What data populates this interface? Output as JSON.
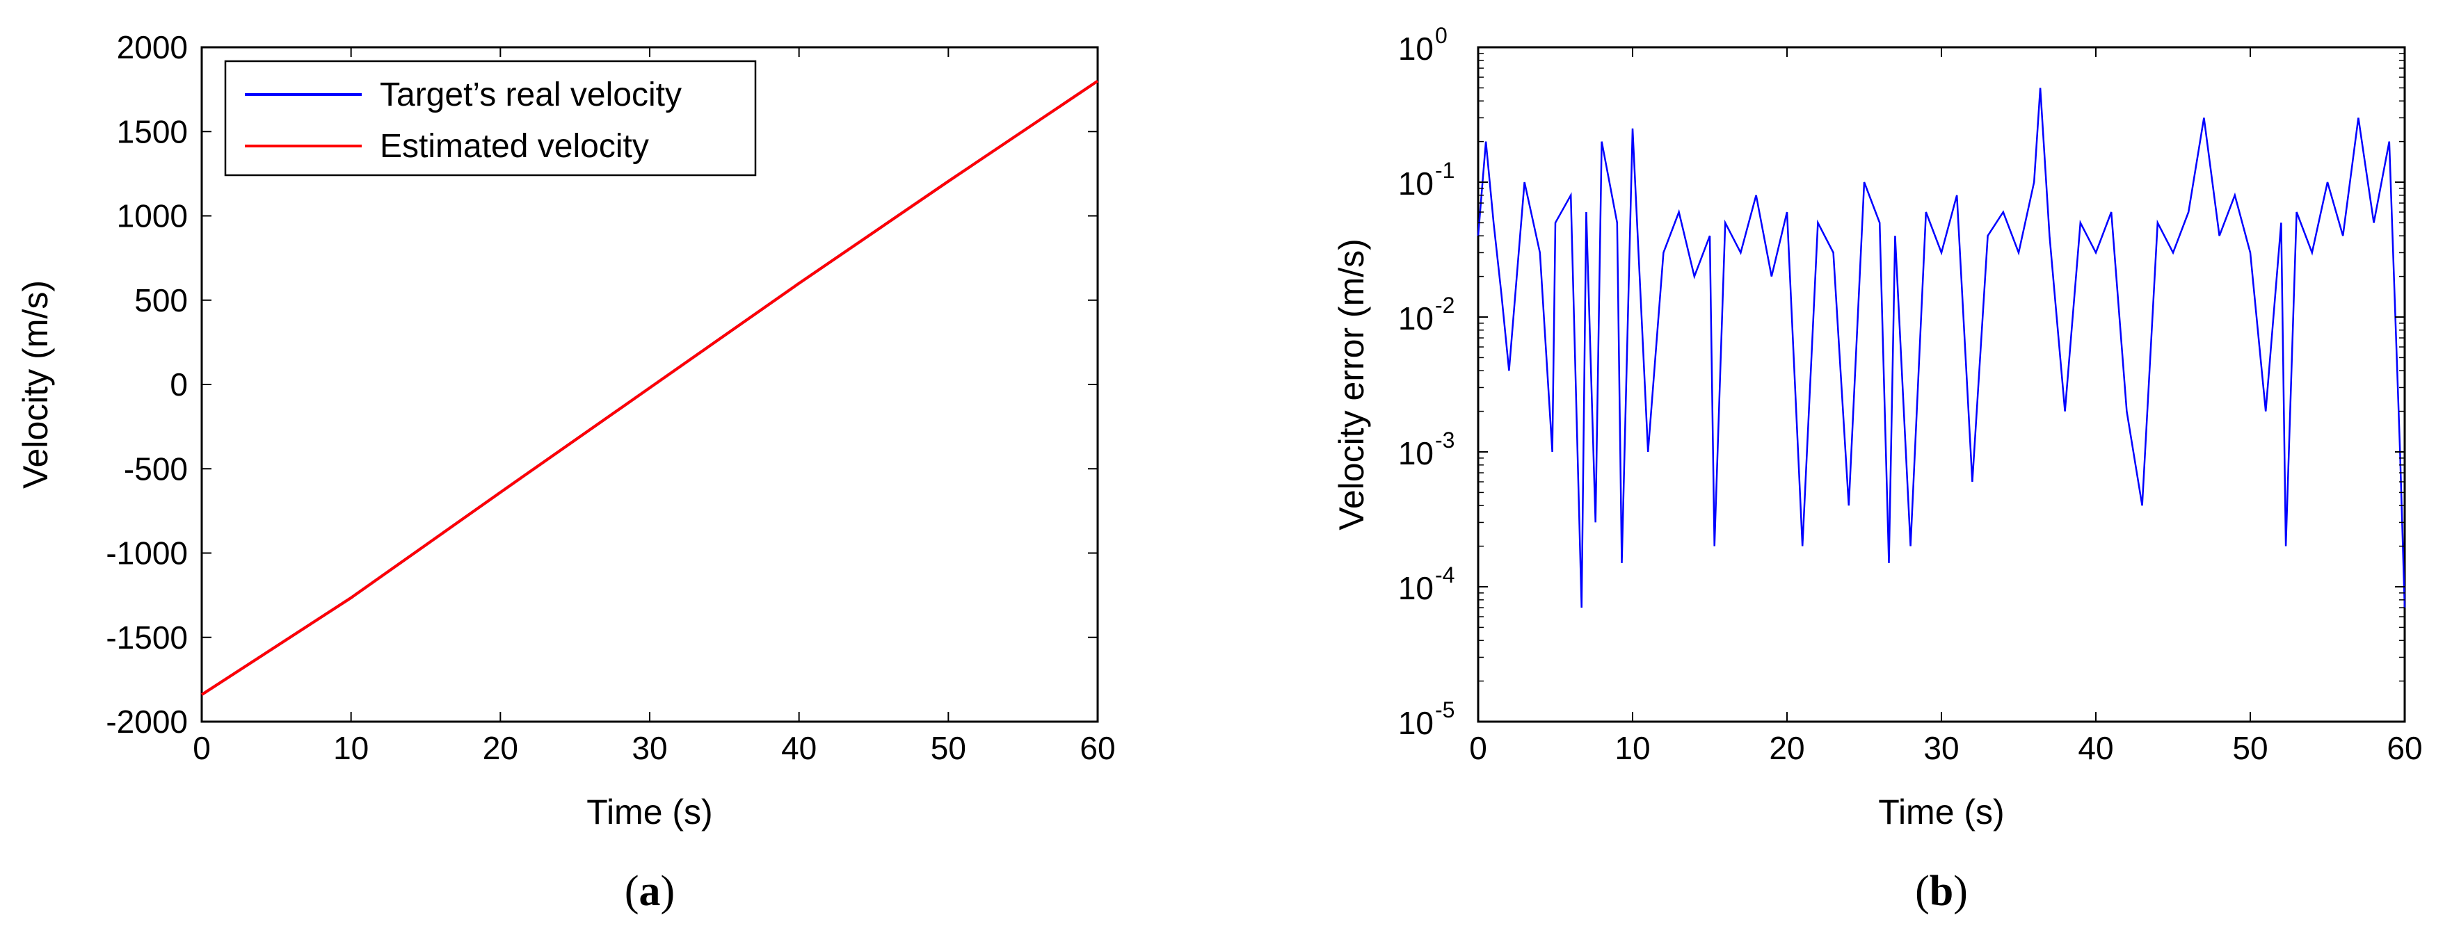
{
  "chart_data": [
    {
      "type": "line",
      "panel": "a",
      "caption_letter": "a",
      "xlabel": "Time (s)",
      "ylabel": "Velocity (m/s)",
      "xlim": [
        0,
        60
      ],
      "ylim": [
        -2000,
        2000
      ],
      "x_ticks": [
        "0",
        "10",
        "20",
        "30",
        "40",
        "50",
        "60"
      ],
      "y_ticks": [
        "-2000",
        "-1500",
        "-1000",
        "-500",
        "0",
        "500",
        "1000",
        "1500",
        "2000"
      ],
      "legend_position": "top-left",
      "series": [
        {
          "name": "Target’s real velocity",
          "color": "#0000ff",
          "x": [
            0,
            10,
            20,
            30,
            40,
            50,
            60
          ],
          "values": [
            -1840,
            -1265,
            -640,
            -20,
            600,
            1205,
            1800
          ]
        },
        {
          "name": "Estimated velocity",
          "color": "#ff0000",
          "x": [
            0,
            10,
            20,
            30,
            40,
            50,
            60
          ],
          "values": [
            -1840,
            -1265,
            -640,
            -20,
            600,
            1205,
            1800
          ]
        }
      ],
      "grid": false
    },
    {
      "type": "line",
      "panel": "b",
      "caption_letter": "b",
      "xlabel": "Time (s)",
      "ylabel": "Velocity error (m/s)",
      "xlim": [
        0,
        60
      ],
      "ylim": [
        1e-05,
        1
      ],
      "y_scale": "log",
      "x_ticks": [
        "0",
        "10",
        "20",
        "30",
        "40",
        "50",
        "60"
      ],
      "y_ticks": [
        {
          "base": "10",
          "exp": "0"
        },
        {
          "base": "10",
          "exp": "-1"
        },
        {
          "base": "10",
          "exp": "-2"
        },
        {
          "base": "10",
          "exp": "-3"
        },
        {
          "base": "10",
          "exp": "-4"
        },
        {
          "base": "10",
          "exp": "-5"
        }
      ],
      "series": [
        {
          "color": "#0000ff",
          "description": "noisy velocity error, mostly 1e-2 to 2e-1 with dips toward 1e-4",
          "x": [
            0,
            0.5,
            1,
            1.5,
            2,
            3,
            4,
            4.8,
            5,
            6,
            6.7,
            7,
            7.6,
            8,
            9,
            9.3,
            10,
            11,
            12,
            13,
            14,
            15,
            15.3,
            16,
            17,
            18,
            19,
            20,
            21,
            22,
            23,
            24,
            25,
            26,
            26.6,
            27,
            28,
            29,
            30,
            31,
            32,
            33,
            34,
            35,
            36,
            36.4,
            37,
            38,
            39,
            40,
            41,
            42,
            43,
            44,
            45,
            46,
            47,
            48,
            49,
            50,
            51,
            52,
            52.3,
            53,
            54,
            55,
            56,
            57,
            58,
            59,
            59.7,
            60
          ],
          "values": [
            0.04,
            0.2,
            0.05,
            0.015,
            0.004,
            0.1,
            0.03,
            0.001,
            0.05,
            0.08,
            7e-05,
            0.06,
            0.0003,
            0.2,
            0.05,
            0.00015,
            0.25,
            0.001,
            0.03,
            0.06,
            0.02,
            0.04,
            0.0002,
            0.05,
            0.03,
            0.08,
            0.02,
            0.06,
            0.0002,
            0.05,
            0.03,
            0.0004,
            0.1,
            0.05,
            0.00015,
            0.04,
            0.0002,
            0.06,
            0.03,
            0.08,
            0.0006,
            0.04,
            0.06,
            0.03,
            0.1,
            0.5,
            0.04,
            0.002,
            0.05,
            0.03,
            0.06,
            0.002,
            0.0004,
            0.05,
            0.03,
            0.06,
            0.3,
            0.04,
            0.08,
            0.03,
            0.002,
            0.05,
            0.0002,
            0.06,
            0.03,
            0.1,
            0.04,
            0.3,
            0.05,
            0.2,
            0.001,
            7e-05
          ]
        }
      ],
      "grid": false
    }
  ]
}
